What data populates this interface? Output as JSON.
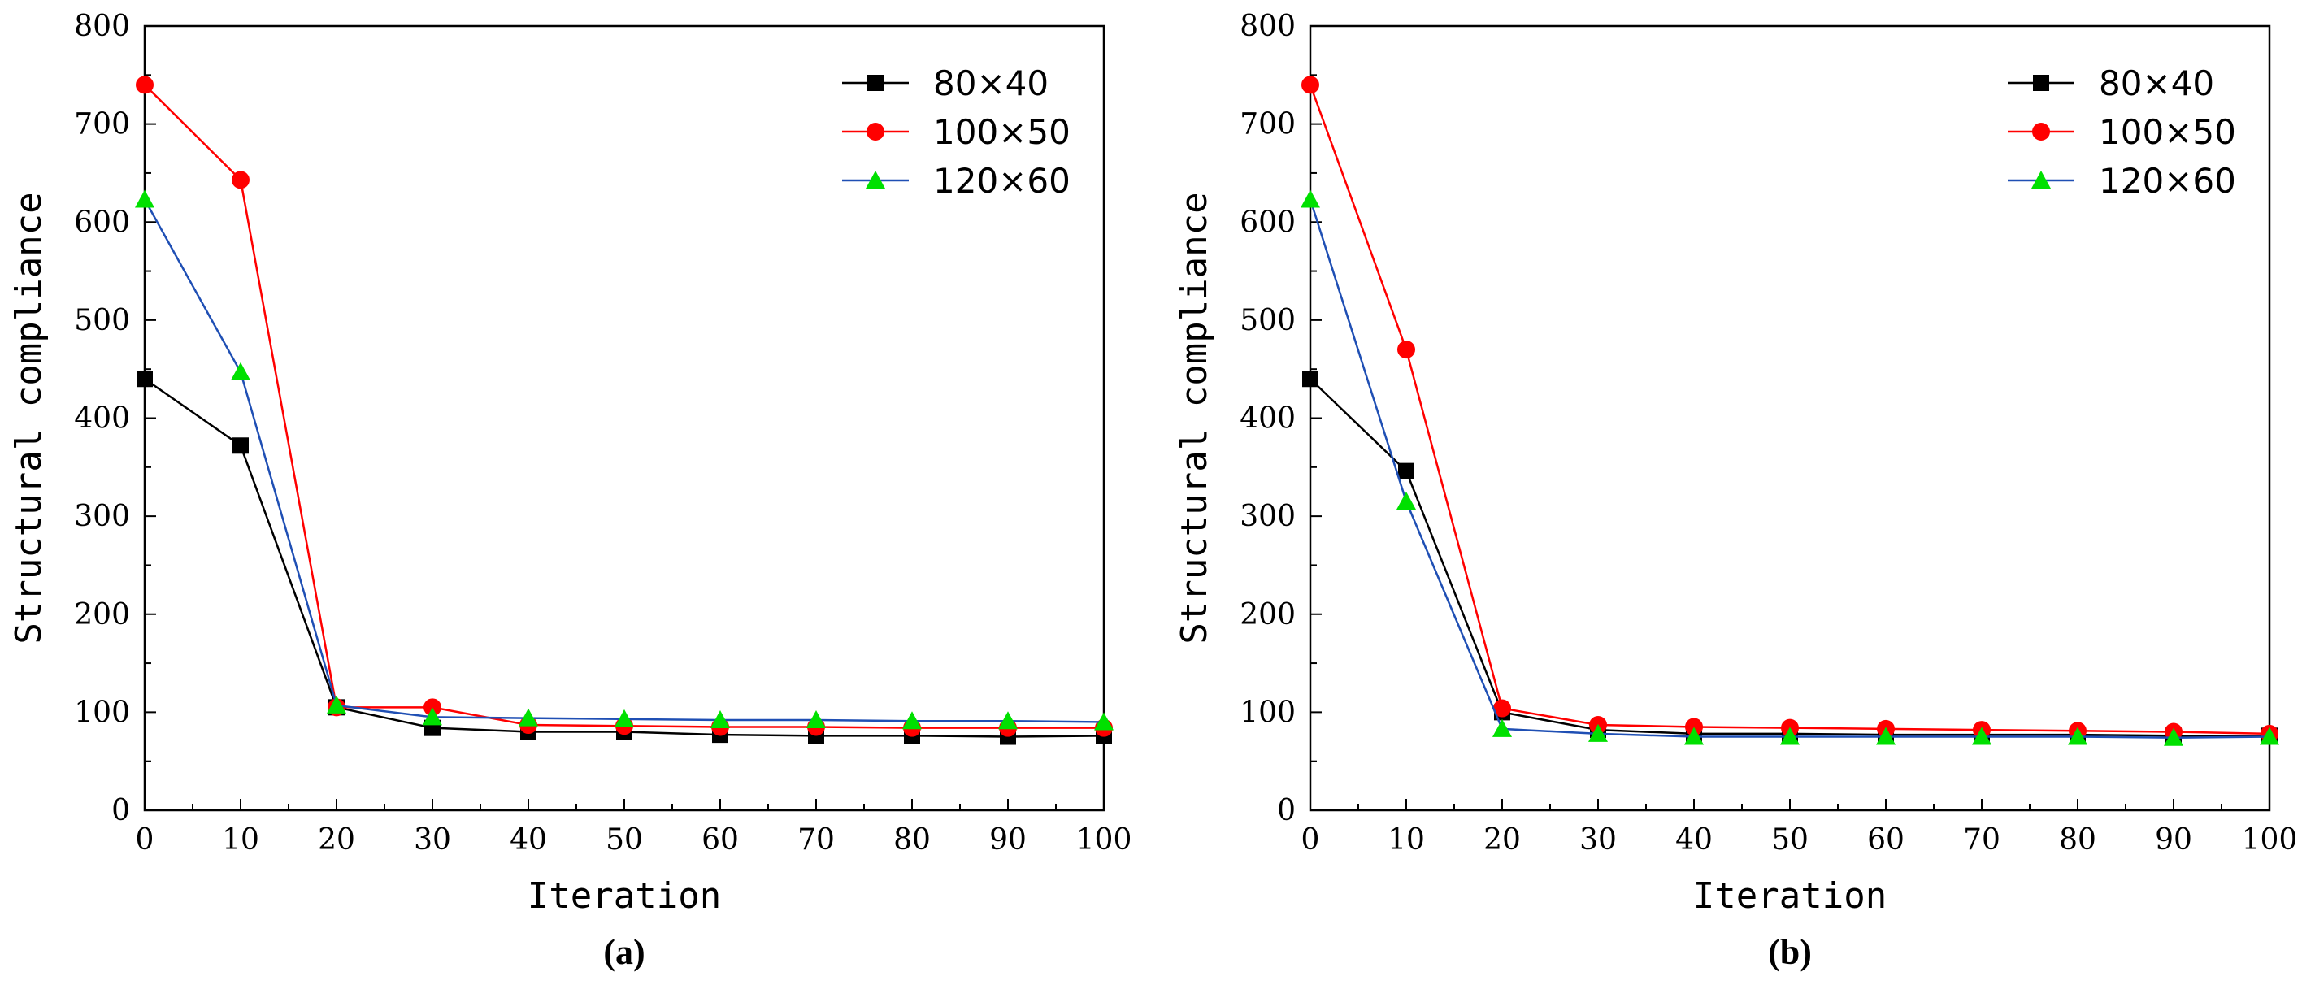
{
  "chart_data": [
    {
      "type": "line",
      "panel_label": "(a)",
      "xlabel": "Iteration",
      "ylabel": "Structural  compliance",
      "xlim": [
        0,
        100
      ],
      "ylim": [
        0,
        800
      ],
      "xticks": [
        0,
        10,
        20,
        30,
        40,
        50,
        60,
        70,
        80,
        90,
        100
      ],
      "yticks": [
        0,
        100,
        200,
        300,
        400,
        500,
        600,
        700,
        800
      ],
      "legend_position": "top-right",
      "grid": false,
      "x": [
        0,
        10,
        20,
        30,
        40,
        50,
        60,
        70,
        80,
        90,
        100
      ],
      "series": [
        {
          "name": "80×40",
          "color": "#000000",
          "marker": "square",
          "values": [
            440,
            372,
            105,
            84,
            80,
            80,
            77,
            76,
            76,
            75,
            76
          ]
        },
        {
          "name": "100×50",
          "color": "#ff0000",
          "marker": "circle",
          "values": [
            740,
            643,
            105,
            105,
            87,
            86,
            85,
            85,
            84,
            84,
            84
          ]
        },
        {
          "name": "120×60",
          "color": "#00e000",
          "line_color": "#1f4fb4",
          "marker": "triangle",
          "values": [
            623,
            447,
            107,
            95,
            94,
            93,
            92,
            92,
            91,
            91,
            90
          ]
        }
      ]
    },
    {
      "type": "line",
      "panel_label": "(b)",
      "xlabel": "Iteration",
      "ylabel": "Structural  compliance",
      "xlim": [
        0,
        100
      ],
      "ylim": [
        0,
        800
      ],
      "xticks": [
        0,
        10,
        20,
        30,
        40,
        50,
        60,
        70,
        80,
        90,
        100
      ],
      "yticks": [
        0,
        100,
        200,
        300,
        400,
        500,
        600,
        700,
        800
      ],
      "legend_position": "top-right",
      "grid": false,
      "x": [
        0,
        10,
        20,
        30,
        40,
        50,
        60,
        70,
        80,
        90,
        100
      ],
      "series": [
        {
          "name": "80×40",
          "color": "#000000",
          "marker": "square",
          "values": [
            440,
            346,
            100,
            82,
            78,
            78,
            77,
            77,
            77,
            76,
            76
          ]
        },
        {
          "name": "100×50",
          "color": "#ff0000",
          "marker": "circle",
          "values": [
            740,
            470,
            104,
            87,
            85,
            84,
            83,
            82,
            81,
            80,
            78
          ]
        },
        {
          "name": "120×60",
          "color": "#00e000",
          "line_color": "#1f4fb4",
          "marker": "triangle",
          "values": [
            623,
            315,
            83,
            78,
            75,
            75,
            75,
            75,
            75,
            74,
            75
          ]
        }
      ]
    }
  ]
}
